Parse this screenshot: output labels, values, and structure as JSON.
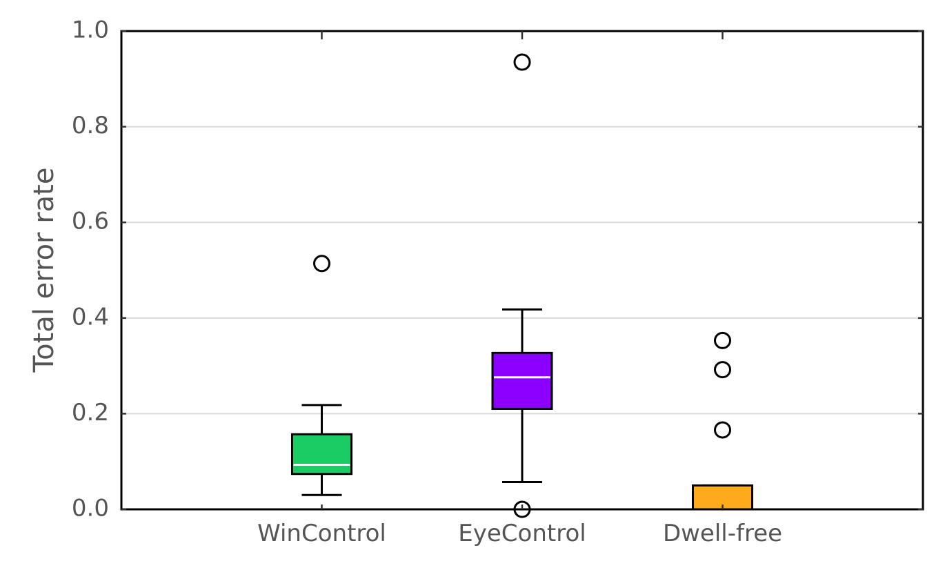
{
  "chart_data": {
    "type": "boxplot",
    "title": "",
    "xlabel": "",
    "ylabel": "Total error rate",
    "ylim": [
      0.0,
      1.0
    ],
    "yticks": [
      "0.0",
      "0.2",
      "0.4",
      "0.6",
      "0.8",
      "1.0"
    ],
    "grid": "horizontal",
    "categories": [
      "WinControl",
      "EyeControl",
      "Dwell-free"
    ],
    "boxes": [
      {
        "category": "WinControl",
        "color": "#19cc63",
        "whisker_low": 0.03,
        "q1": 0.074,
        "median": 0.093,
        "q3": 0.157,
        "whisker_high": 0.218,
        "outliers": [
          0.514
        ]
      },
      {
        "category": "EyeControl",
        "color": "#8c00ff",
        "whisker_low": 0.057,
        "q1": 0.21,
        "median": 0.276,
        "q3": 0.327,
        "whisker_high": 0.418,
        "outliers": [
          0.935,
          0.0
        ]
      },
      {
        "category": "Dwell-free",
        "color": "#ffaa1a",
        "whisker_low": 0.0,
        "q1": 0.0,
        "median": 0.0,
        "q3": 0.05,
        "whisker_high": 0.05,
        "outliers": [
          0.353,
          0.292,
          0.166
        ]
      }
    ]
  }
}
